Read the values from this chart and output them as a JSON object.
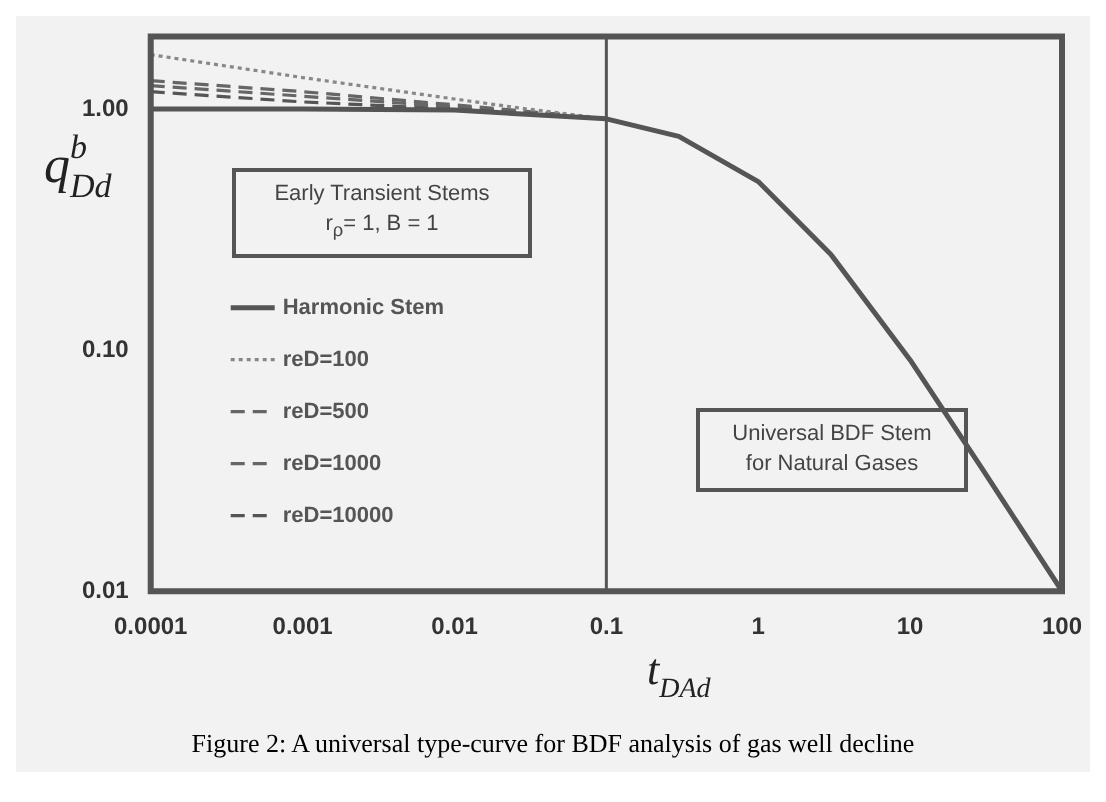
{
  "chart_data": {
    "type": "line",
    "ylabel": "q$^{b}$$_{Dd}$",
    "xlabel": "t$_{DAd}$",
    "log": "xy",
    "xlim": [
      0.0001,
      100
    ],
    "ylim": [
      0.01,
      2
    ],
    "xticks": [
      0.0001,
      0.001,
      0.01,
      0.1,
      1,
      10,
      100
    ],
    "yticks": [
      {
        "value": 0.01,
        "label": "0.01"
      },
      {
        "value": 0.1,
        "label": "0.10"
      },
      {
        "value": 1,
        "label": "1.00"
      }
    ],
    "legend": "left",
    "marker": "none",
    "ref_lines": [
      {
        "axis": "x",
        "value": 0.1,
        "color": "#555555"
      }
    ],
    "series": [
      {
        "name": "Harmonic Stem",
        "color": "#555555",
        "line_style": "solid",
        "x": [
          0.0001,
          0.001,
          0.01,
          0.1,
          0.3,
          1,
          3,
          10,
          30,
          100
        ],
        "values": [
          1,
          0.999,
          0.99,
          0.91,
          0.77,
          0.5,
          0.25,
          0.091,
          0.032,
          0.01
        ]
      },
      {
        "name": "reD=100",
        "color": "#888888",
        "line_style": "dotted",
        "x": [
          0.0001,
          0.001,
          0.01,
          0.03,
          0.1
        ],
        "values": [
          1.68,
          1.35,
          1.1,
          1.0,
          0.91
        ]
      },
      {
        "name": "reD=500",
        "color": "#666666",
        "line_style": "dashed",
        "x": [
          0.0001,
          0.001,
          0.01,
          0.05
        ],
        "values": [
          1.31,
          1.18,
          1.04,
          0.95
        ]
      },
      {
        "name": "reD=1000",
        "color": "#666666",
        "line_style": "dashed",
        "x": [
          0.0001,
          0.001,
          0.01,
          0.05
        ],
        "values": [
          1.25,
          1.13,
          1.02,
          0.95
        ]
      },
      {
        "name": "reD=10000",
        "color": "#555555",
        "line_style": "dashed",
        "x": [
          0.0001,
          0.001,
          0.01,
          0.05
        ],
        "values": [
          1.18,
          1.07,
          1.0,
          0.95
        ]
      }
    ],
    "annotations": [
      "Early Transient Stems",
      "r$_{ρ}$= 1, B = 1",
      "Universal BDF Stem",
      "for Natural Gases",
      "Figure 2: A universal type-curve for BDF analysis of gas well decline"
    ]
  }
}
